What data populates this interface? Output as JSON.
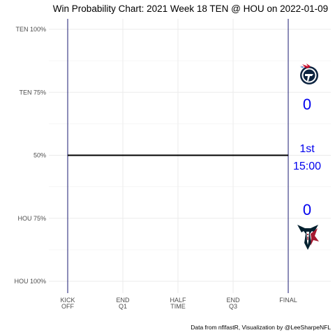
{
  "chart_data": {
    "type": "line",
    "title": "Win Probability Chart: 2021 Week 18 TEN @ HOU on 2022-01-09",
    "caption": "Data from nflfastR, Visualization by @LeeSharpeNFL",
    "y_ticks": [
      {
        "value": 100,
        "label": "TEN 100%"
      },
      {
        "value": 75,
        "label": "TEN 75%"
      },
      {
        "value": 50,
        "label": "50%"
      },
      {
        "value": 25,
        "label": "HOU 75%"
      },
      {
        "value": 0,
        "label": "HOU 100%"
      }
    ],
    "x_ticks": [
      {
        "value": 3600,
        "line1": "KICK",
        "line2": "OFF"
      },
      {
        "value": 2700,
        "line1": "END",
        "line2": "Q1"
      },
      {
        "value": 1800,
        "line1": "HALF",
        "line2": "TIME"
      },
      {
        "value": 900,
        "line1": "END",
        "line2": "Q3"
      },
      {
        "value": 0,
        "line1": "FINAL",
        "line2": ""
      }
    ],
    "xlim": [
      3600,
      0
    ],
    "ylim": [
      0,
      100
    ],
    "grid": true,
    "series": [
      {
        "x": [
          3600,
          0
        ],
        "y": [
          50,
          50
        ],
        "color": "#000000"
      }
    ],
    "vertical_lines": [
      3600,
      0
    ],
    "teams": {
      "away": {
        "abbr": "TEN",
        "score": "0",
        "logo": "titans-logo"
      },
      "home": {
        "abbr": "HOU",
        "score": "0",
        "logo": "texans-logo"
      }
    },
    "game_state": {
      "quarter": "1st",
      "clock": "15:00"
    },
    "text_color": "#0000ee"
  }
}
